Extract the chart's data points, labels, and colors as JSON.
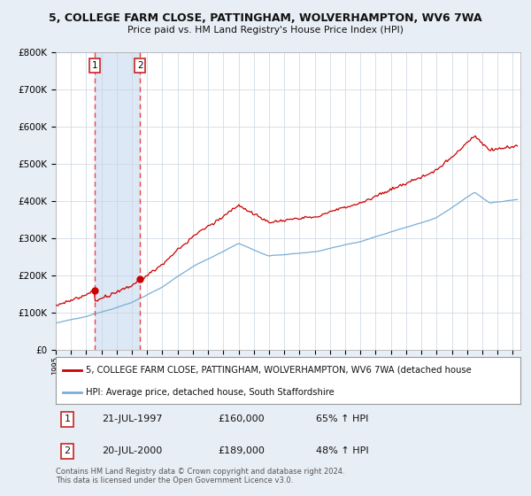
{
  "title": "5, COLLEGE FARM CLOSE, PATTINGHAM, WOLVERHAMPTON, WV6 7WA",
  "subtitle": "Price paid vs. HM Land Registry's House Price Index (HPI)",
  "legend_line1": "5, COLLEGE FARM CLOSE, PATTINGHAM, WOLVERHAMPTON, WV6 7WA (detached house",
  "legend_line2": "HPI: Average price, detached house, South Staffordshire",
  "sale1_label": "1",
  "sale1_date": "21-JUL-1997",
  "sale1_price": "£160,000",
  "sale1_hpi": "65% ↑ HPI",
  "sale1_year": 1997.54,
  "sale1_value": 160000,
  "sale2_label": "2",
  "sale2_date": "20-JUL-2000",
  "sale2_price": "£189,000",
  "sale2_hpi": "48% ↑ HPI",
  "sale2_year": 2000.54,
  "sale2_value": 189000,
  "copyright": "Contains HM Land Registry data © Crown copyright and database right 2024.\nThis data is licensed under the Open Government Licence v3.0.",
  "ylim": [
    0,
    800000
  ],
  "xlim_start": 1995.0,
  "xlim_end": 2025.5,
  "bg_color": "#e8eef5",
  "plot_bg_color": "#ffffff",
  "red_line_color": "#cc0000",
  "blue_line_color": "#7aaed6",
  "vline_color": "#ee4444",
  "marker_color": "#cc0000",
  "box_color": "#cc2222",
  "span_color": "#dce8f5"
}
